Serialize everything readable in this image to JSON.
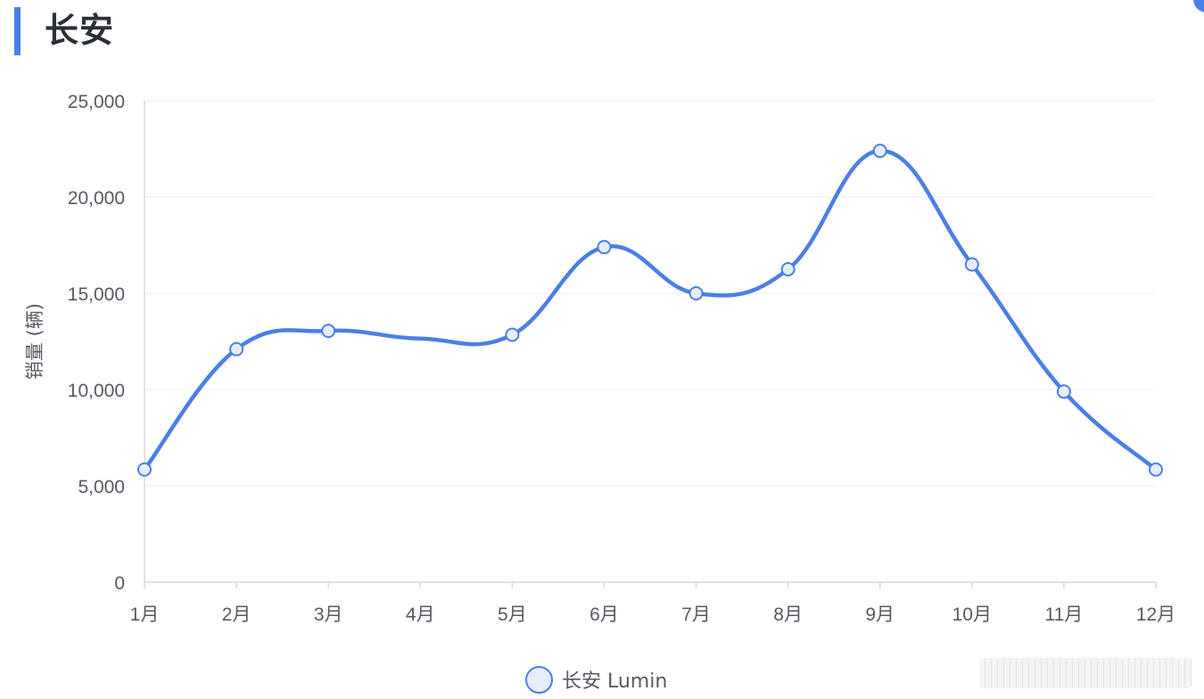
{
  "page": {
    "title": "长安"
  },
  "colors": {
    "accent": "#4a7fe6",
    "point_fill": "#e6eefc",
    "grid": "#ececec",
    "axis": "#d9d9d9",
    "tick_text": "#555a63"
  },
  "legend": {
    "label": "长安 Lumin"
  },
  "chart_data": {
    "type": "line",
    "smooth": true,
    "categories": [
      "1月",
      "2月",
      "3月",
      "4月",
      "5月",
      "6月",
      "7月",
      "8月",
      "9月",
      "10月",
      "11月",
      "12月"
    ],
    "series": [
      {
        "name": "长安 Lumin",
        "color": "#4a7fe6",
        "values": [
          5850,
          12100,
          13050,
          null,
          12850,
          17400,
          15000,
          16250,
          22400,
          16500,
          9900,
          5850
        ],
        "marker_indices": [
          0,
          1,
          2,
          4,
          5,
          6,
          7,
          8,
          9,
          10,
          11
        ]
      }
    ],
    "ylabel": "销量 (辆)",
    "xlabel": "",
    "ylim": [
      0,
      25000
    ],
    "yticks": [
      0,
      5000,
      10000,
      15000,
      20000,
      25000
    ],
    "ytick_labels": [
      "0",
      "5,000",
      "10,000",
      "15,000",
      "20,000",
      "25,000"
    ],
    "grid": "horizontal",
    "legend_position": "bottom-center"
  }
}
